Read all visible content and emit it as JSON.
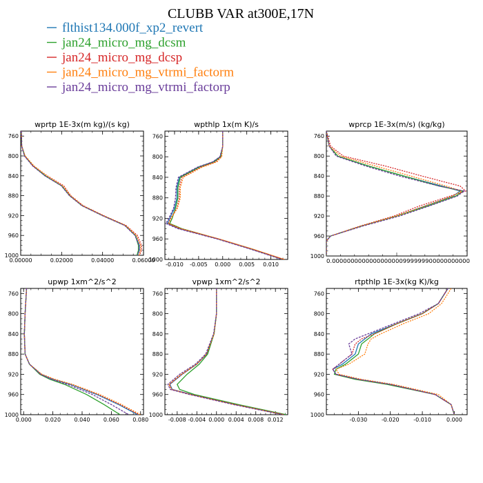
{
  "figure": {
    "title": "CLUBB VAR at300E,17N"
  },
  "colors": {
    "flthist134.000f_xp2_revert": "#1f77b4",
    "jan24_micro_mg_dcsm": "#2ca02c",
    "jan24_micro_mg_dcsp": "#d62728",
    "jan24_micro_mg_vtrmi_factorm": "#ff7f0e",
    "jan24_micro_mg_vtrmi_factorp": "#6a3d9a"
  },
  "chart_data": [
    {
      "type": "line",
      "title": "wprtp  1E-3x(m kg)/(s kg)",
      "xlim": [
        0,
        0.06
      ],
      "ylim": [
        1000,
        750
      ],
      "xticks": [
        0,
        0.02,
        0.04,
        0.06
      ],
      "xtick_labels": [
        "0.00000",
        "0.02000",
        "0.04000",
        "0.06000"
      ],
      "yticks": [
        760,
        800,
        840,
        880,
        920,
        960,
        1000
      ],
      "y": [
        750,
        780,
        800,
        820,
        840,
        860,
        880,
        900,
        920,
        940,
        960,
        980,
        990,
        1000
      ],
      "series": [
        {
          "name": "flthist134.000f_xp2_revert",
          "x": [
            0.0003,
            0.0005,
            0.002,
            0.006,
            0.012,
            0.02,
            0.024,
            0.03,
            0.04,
            0.051,
            0.056,
            0.058,
            0.058,
            0.057
          ]
        },
        {
          "name": "jan24_micro_mg_dcsm",
          "x": [
            0.0003,
            0.0005,
            0.002,
            0.006,
            0.012,
            0.02,
            0.024,
            0.03,
            0.04,
            0.051,
            0.056,
            0.0575,
            0.0575,
            0.0568
          ]
        },
        {
          "name": "jan24_micro_mg_dcsp",
          "x": [
            0.0003,
            0.0005,
            0.002,
            0.006,
            0.013,
            0.021,
            0.0245,
            0.0305,
            0.0405,
            0.0515,
            0.057,
            0.059,
            0.059,
            0.058
          ]
        },
        {
          "name": "jan24_micro_mg_vtrmi_factorm",
          "x": [
            0.0003,
            0.0005,
            0.0022,
            0.0065,
            0.0128,
            0.0205,
            0.0243,
            0.0302,
            0.0402,
            0.0512,
            0.0565,
            0.0585,
            0.0585,
            0.0578
          ]
        },
        {
          "name": "jan24_micro_mg_vtrmi_factorp",
          "x": [
            0.0003,
            0.0005,
            0.0018,
            0.0058,
            0.0118,
            0.0198,
            0.0238,
            0.0298,
            0.0398,
            0.0508,
            0.0558,
            0.0578,
            0.0578,
            0.0571
          ]
        }
      ]
    },
    {
      "type": "line",
      "title": "wpthlp  1x(m K)/s",
      "xlim": [
        -0.012,
        0.0135
      ],
      "ylim": [
        1000,
        750
      ],
      "xticks": [
        -0.01,
        -0.005,
        0,
        0.005,
        0.01
      ],
      "xtick_labels": [
        "-0.010",
        "-0.005",
        "0.000",
        "0.005",
        "0.010"
      ],
      "yticks": [
        760,
        800,
        840,
        880,
        920,
        960,
        1000
      ],
      "y": [
        750,
        780,
        800,
        810,
        820,
        840,
        860,
        880,
        900,
        920,
        930,
        940,
        960,
        980,
        1000
      ],
      "series": [
        {
          "name": "flthist134.000f_xp2_revert",
          "x": [
            0,
            0,
            -0.0005,
            -0.002,
            -0.005,
            -0.009,
            -0.0095,
            -0.0095,
            -0.01,
            -0.011,
            -0.0115,
            -0.009,
            -0.001,
            0.006,
            0.0125
          ]
        },
        {
          "name": "jan24_micro_mg_dcsm",
          "x": [
            0,
            0,
            -0.0004,
            -0.0018,
            -0.0048,
            -0.0088,
            -0.0093,
            -0.0093,
            -0.0098,
            -0.0105,
            -0.011,
            -0.0085,
            -0.0009,
            0.0062,
            0.0126
          ]
        },
        {
          "name": "jan24_micro_mg_dcsp",
          "x": [
            0,
            0,
            -0.0003,
            -0.0015,
            -0.0045,
            -0.0085,
            -0.009,
            -0.009,
            -0.0095,
            -0.0108,
            -0.0113,
            -0.0088,
            -0.0009,
            0.0061,
            0.0127
          ]
        },
        {
          "name": "jan24_micro_mg_vtrmi_factorm",
          "x": [
            0,
            0,
            -0.0002,
            -0.0012,
            -0.0042,
            -0.0082,
            -0.0088,
            -0.0088,
            -0.0094,
            -0.0107,
            -0.0112,
            -0.0087,
            -0.0008,
            0.0063,
            0.0128
          ]
        },
        {
          "name": "jan24_micro_mg_vtrmi_factorp",
          "x": [
            0,
            0,
            -0.0006,
            -0.0021,
            -0.0052,
            -0.0092,
            -0.0097,
            -0.0098,
            -0.0102,
            -0.0112,
            -0.0118,
            -0.0093,
            -0.0012,
            0.0058,
            0.0123
          ]
        }
      ]
    },
    {
      "type": "line",
      "title": "wprcp  1E-3x(m/s) (kg/kg)",
      "xlim": [
        0,
        1
      ],
      "ylim": [
        1000,
        750
      ],
      "xticks": [],
      "xtick_labels": [],
      "xtick_text": "0.0000000000000000000999999900000000000",
      "yticks": [
        760,
        800,
        840,
        880,
        920,
        960,
        1000
      ],
      "y": [
        750,
        780,
        800,
        820,
        840,
        860,
        870,
        880,
        900,
        920,
        940,
        960,
        970,
        1000
      ],
      "series": [
        {
          "name": "flthist134.000f_xp2_revert",
          "x": [
            0,
            0.02,
            0.08,
            0.3,
            0.55,
            0.82,
            0.95,
            0.9,
            0.7,
            0.5,
            0.25,
            0.03,
            0,
            0
          ]
        },
        {
          "name": "jan24_micro_mg_dcsm",
          "x": [
            0,
            0.02,
            0.08,
            0.3,
            0.55,
            0.8,
            0.97,
            0.92,
            0.72,
            0.5,
            0.25,
            0.03,
            0,
            0
          ]
        },
        {
          "name": "jan24_micro_mg_dcsp",
          "x": [
            0,
            0.03,
            0.12,
            0.42,
            0.68,
            0.95,
            0.99,
            0.88,
            0.66,
            0.48,
            0.24,
            0.03,
            0,
            0
          ]
        },
        {
          "name": "jan24_micro_mg_vtrmi_factorm",
          "x": [
            0,
            0.02,
            0.1,
            0.35,
            0.6,
            0.85,
            0.96,
            0.9,
            0.7,
            0.5,
            0.25,
            0.03,
            0,
            0
          ]
        },
        {
          "name": "jan24_micro_mg_vtrmi_factorp",
          "x": [
            0,
            0.02,
            0.07,
            0.28,
            0.52,
            0.8,
            0.98,
            0.93,
            0.73,
            0.52,
            0.26,
            0.03,
            0,
            0
          ]
        }
      ]
    },
    {
      "type": "line",
      "title": "upwp  1xm^2/s^2",
      "xlim": [
        -0.002,
        0.082
      ],
      "ylim": [
        1000,
        750
      ],
      "xticks": [
        0,
        0.02,
        0.04,
        0.06,
        0.08
      ],
      "xtick_labels": [
        "0.000",
        "0.020",
        "0.040",
        "0.060",
        "0.080"
      ],
      "yticks": [
        760,
        800,
        840,
        880,
        920,
        960,
        1000
      ],
      "y": [
        750,
        800,
        840,
        880,
        900,
        920,
        930,
        940,
        960,
        980,
        1000
      ],
      "series": [
        {
          "name": "flthist134.000f_xp2_revert",
          "x": [
            0.002,
            0.001,
            0.0005,
            0.001,
            0.004,
            0.012,
            0.02,
            0.032,
            0.05,
            0.065,
            0.078
          ]
        },
        {
          "name": "jan24_micro_mg_dcsm",
          "x": [
            0.002,
            0.001,
            0.0005,
            0.001,
            0.004,
            0.011,
            0.018,
            0.028,
            0.043,
            0.055,
            0.066
          ]
        },
        {
          "name": "jan24_micro_mg_dcsp",
          "x": [
            0.002,
            0.001,
            0.0005,
            0.001,
            0.004,
            0.012,
            0.021,
            0.033,
            0.051,
            0.066,
            0.079
          ]
        },
        {
          "name": "jan24_micro_mg_vtrmi_factorm",
          "x": [
            0.002,
            0.001,
            0.0005,
            0.001,
            0.004,
            0.0125,
            0.0215,
            0.0335,
            0.052,
            0.067,
            0.08
          ]
        },
        {
          "name": "jan24_micro_mg_vtrmi_factorp",
          "x": [
            0.002,
            0.001,
            0.0005,
            0.001,
            0.004,
            0.0115,
            0.019,
            0.03,
            0.047,
            0.06,
            0.072
          ]
        }
      ]
    },
    {
      "type": "line",
      "title": "vpwp  1xm^2/s^2",
      "xlim": [
        -0.0105,
        0.0145
      ],
      "ylim": [
        1000,
        750
      ],
      "xticks": [
        -0.008,
        -0.004,
        0,
        0.004,
        0.008,
        0.012
      ],
      "xtick_labels": [
        "-0.008",
        "-0.004",
        "0.000",
        "0.004",
        "0.008",
        "0.012"
      ],
      "yticks": [
        760,
        800,
        840,
        880,
        920,
        960,
        1000
      ],
      "y": [
        750,
        800,
        840,
        880,
        900,
        920,
        940,
        950,
        960,
        980,
        1000
      ],
      "series": [
        {
          "name": "flthist134.000f_xp2_revert",
          "x": [
            0,
            0,
            -0.0005,
            -0.002,
            -0.004,
            -0.007,
            -0.0095,
            -0.009,
            -0.005,
            0.004,
            0.014
          ]
        },
        {
          "name": "jan24_micro_mg_dcsm",
          "x": [
            0,
            0,
            -0.0005,
            -0.0018,
            -0.0035,
            -0.006,
            -0.008,
            -0.0075,
            -0.0045,
            0.0045,
            0.0142
          ]
        },
        {
          "name": "jan24_micro_mg_dcsp",
          "x": [
            0,
            0,
            -0.0005,
            -0.002,
            -0.004,
            -0.007,
            -0.0096,
            -0.0091,
            -0.0052,
            0.0038,
            0.0138
          ]
        },
        {
          "name": "jan24_micro_mg_vtrmi_factorm",
          "x": [
            0,
            0,
            -0.0005,
            -0.0021,
            -0.0041,
            -0.0072,
            -0.0097,
            -0.0092,
            -0.0053,
            0.0037,
            0.0137
          ]
        },
        {
          "name": "jan24_micro_mg_vtrmi_factorp",
          "x": [
            0,
            0,
            -0.0006,
            -0.0022,
            -0.0043,
            -0.0075,
            -0.0099,
            -0.0094,
            -0.0055,
            0.0035,
            0.0135
          ]
        }
      ]
    },
    {
      "type": "line",
      "title": "rtpthlp  1E-3x(kg K)/kg",
      "xlim": [
        -0.04,
        0.004
      ],
      "ylim": [
        1000,
        750
      ],
      "xticks": [
        -0.03,
        -0.02,
        -0.01,
        0
      ],
      "xtick_labels": [
        "-0.030",
        "-0.020",
        "-0.010",
        "0.000"
      ],
      "yticks": [
        760,
        800,
        840,
        880,
        920,
        960,
        1000
      ],
      "y": [
        750,
        780,
        800,
        820,
        840,
        850,
        860,
        880,
        900,
        910,
        920,
        930,
        940,
        960,
        980,
        1000
      ],
      "series": [
        {
          "name": "flthist134.000f_xp2_revert",
          "x": [
            -0.002,
            -0.005,
            -0.01,
            -0.018,
            -0.026,
            -0.028,
            -0.03,
            -0.031,
            -0.035,
            -0.038,
            -0.037,
            -0.03,
            -0.02,
            -0.006,
            -0.001,
            0
          ]
        },
        {
          "name": "jan24_micro_mg_dcsm",
          "x": [
            -0.002,
            -0.005,
            -0.01,
            -0.018,
            -0.025,
            -0.027,
            -0.029,
            -0.03,
            -0.034,
            -0.037,
            -0.0375,
            -0.031,
            -0.021,
            -0.006,
            -0.001,
            0
          ]
        },
        {
          "name": "jan24_micro_mg_dcsp",
          "x": [
            -0.002,
            -0.005,
            -0.01,
            -0.018,
            -0.025,
            -0.029,
            -0.031,
            -0.032,
            -0.036,
            -0.038,
            -0.037,
            -0.03,
            -0.02,
            -0.006,
            -0.001,
            0
          ]
        },
        {
          "name": "jan24_micro_mg_vtrmi_factorm",
          "x": [
            -0.001,
            -0.004,
            -0.008,
            -0.016,
            -0.023,
            -0.026,
            -0.027,
            -0.028,
            -0.033,
            -0.037,
            -0.036,
            -0.029,
            -0.019,
            -0.005,
            -0.001,
            0
          ]
        },
        {
          "name": "jan24_micro_mg_vtrmi_factorp",
          "x": [
            -0.002,
            -0.005,
            -0.011,
            -0.019,
            -0.027,
            -0.031,
            -0.033,
            -0.032,
            -0.036,
            -0.038,
            -0.037,
            -0.03,
            -0.02,
            -0.006,
            -0.001,
            0
          ]
        }
      ]
    }
  ]
}
